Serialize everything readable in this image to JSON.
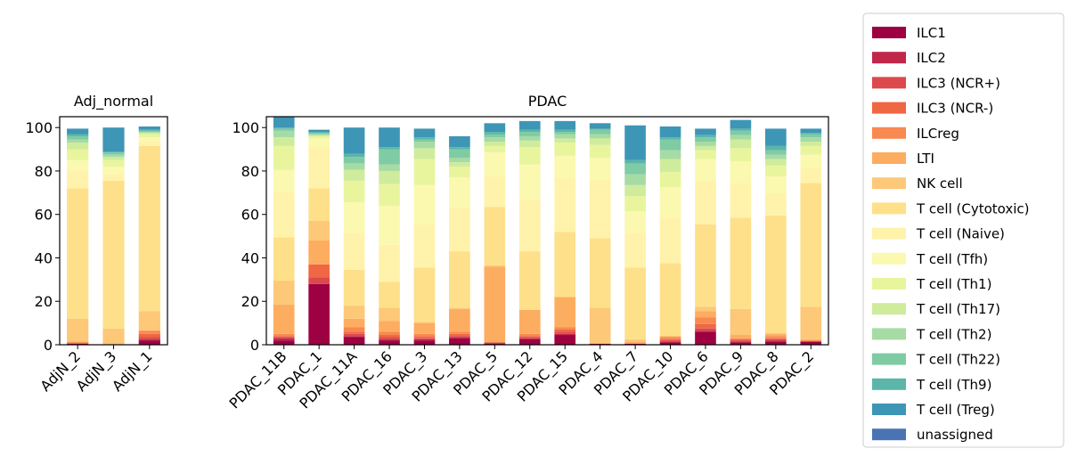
{
  "chart_data": {
    "type": "bar",
    "stacked": true,
    "legend_position": "right",
    "grid": false,
    "categories_legend": [
      {
        "name": "ILC1",
        "color": "#9e0142"
      },
      {
        "name": "ILC2",
        "color": "#c1274a"
      },
      {
        "name": "ILC3 (NCR+)",
        "color": "#dc494c"
      },
      {
        "name": "ILC3 (NCR-)",
        "color": "#f06744"
      },
      {
        "name": "ILCreg",
        "color": "#f88950"
      },
      {
        "name": "LTI",
        "color": "#fdad60"
      },
      {
        "name": "NK cell",
        "color": "#fdc877"
      },
      {
        "name": "T cell (Cytotoxic)",
        "color": "#fee08b"
      },
      {
        "name": "T cell (Naive)",
        "color": "#fff2aa"
      },
      {
        "name": "T cell (Tfh)",
        "color": "#fbf8b0"
      },
      {
        "name": "T cell (Th1)",
        "color": "#e9f59d"
      },
      {
        "name": "T cell (Th17)",
        "color": "#cfec9d"
      },
      {
        "name": "T cell (Th2)",
        "color": "#a7dba4"
      },
      {
        "name": "T cell (Th22)",
        "color": "#7fcba4"
      },
      {
        "name": "T cell (Th9)",
        "color": "#5bb5a8"
      },
      {
        "name": "T cell (Treg)",
        "color": "#3e96b6"
      },
      {
        "name": "unassigned",
        "color": "#4a73b3"
      }
    ],
    "panels": [
      {
        "title": "Adj_normal",
        "ylim": [
          0,
          105
        ],
        "yticks": [
          0,
          20,
          40,
          60,
          80,
          100
        ],
        "categories": [
          "AdjN_2",
          "AdjN_3",
          "AdjN_1"
        ],
        "values": [
          [
            0.5,
            0,
            0,
            0.5,
            0,
            0.5,
            10.5,
            60,
            8,
            5,
            5,
            3,
            1.5,
            1.5,
            1,
            2.5,
            0
          ],
          [
            0,
            0,
            0,
            0,
            0,
            0,
            7.5,
            68,
            3,
            3.5,
            3,
            1.5,
            1,
            1,
            0.5,
            11,
            0
          ],
          [
            2,
            0.5,
            1,
            1.5,
            1.5,
            0,
            9,
            76,
            2,
            2,
            1.5,
            0.5,
            0.5,
            0.5,
            0.5,
            1.5,
            0
          ]
        ]
      },
      {
        "title": "PDAC",
        "ylim": [
          0,
          105
        ],
        "yticks": [
          0,
          20,
          40,
          60,
          80,
          100
        ],
        "categories": [
          "PDAC_11B",
          "PDAC_1",
          "PDAC_11A",
          "PDAC_16",
          "PDAC_3",
          "PDAC_13",
          "PDAC_5",
          "PDAC_12",
          "PDAC_15",
          "PDAC_4",
          "PDAC_7",
          "PDAC_10",
          "PDAC_6",
          "PDAC_9",
          "PDAC_8",
          "PDAC_2"
        ],
        "values": [
          [
            2,
            1,
            0.5,
            0.5,
            1,
            13.5,
            11,
            20,
            21,
            10,
            11,
            4,
            3,
            1,
            0.5,
            5,
            0
          ],
          [
            28,
            0,
            3,
            6,
            0,
            11,
            9,
            15,
            19,
            4,
            1,
            0.5,
            0.5,
            0.5,
            0.5,
            1,
            0
          ],
          [
            3.5,
            0.5,
            1,
            1,
            2,
            4,
            6,
            16.5,
            17,
            14,
            10,
            5,
            3,
            3,
            1.5,
            12,
            0
          ],
          [
            2,
            0.5,
            1,
            1,
            1.5,
            5,
            6,
            12,
            17,
            18,
            10,
            6,
            3,
            7,
            1,
            9,
            0
          ],
          [
            2,
            0.5,
            0.5,
            1,
            1,
            5,
            0.5,
            25,
            20,
            18,
            12,
            5,
            3,
            1,
            1,
            4,
            0
          ],
          [
            3,
            0.5,
            0.5,
            1,
            1,
            10.5,
            0.5,
            26,
            20,
            14,
            5,
            2,
            2,
            4,
            1,
            5,
            0
          ],
          [
            0.5,
            0.5,
            0,
            0,
            0,
            35,
            0.5,
            27,
            14,
            11,
            3,
            2,
            2,
            1.5,
            1,
            4,
            0
          ],
          [
            2.5,
            0.5,
            0.5,
            0.5,
            1,
            11,
            0,
            27,
            24,
            16,
            8,
            3,
            2,
            2,
            1,
            4,
            0
          ],
          [
            4.5,
            0.5,
            1,
            1,
            1,
            14,
            0,
            30,
            25,
            10,
            6,
            2,
            2,
            1,
            1,
            4,
            0
          ],
          [
            0.5,
            0,
            0,
            0,
            0,
            0,
            16.5,
            32,
            27,
            10,
            6,
            3,
            2,
            2,
            0.5,
            2.5,
            0
          ],
          [
            0.5,
            0,
            0,
            0,
            0,
            1,
            1,
            33,
            16,
            10,
            7,
            5,
            5,
            5,
            1.5,
            16,
            0
          ],
          [
            1,
            0.5,
            0.5,
            0.5,
            1,
            0.5,
            0,
            33.5,
            21,
            14,
            7,
            6,
            4,
            5,
            1,
            5,
            0
          ],
          [
            6,
            0.5,
            1,
            2,
            3,
            3,
            2,
            38,
            20,
            10,
            4,
            2,
            2,
            2,
            1,
            3,
            0
          ],
          [
            1,
            0.5,
            0.5,
            0.5,
            0.5,
            1.5,
            12,
            42,
            16,
            10,
            6,
            4,
            2,
            2,
            1,
            4,
            0
          ],
          [
            1.5,
            0.5,
            0.5,
            0.5,
            1,
            1,
            0.5,
            54,
            10,
            8,
            5,
            3,
            2,
            2,
            2,
            8,
            0
          ],
          [
            1.5,
            0,
            0,
            0,
            0.5,
            0.5,
            15,
            57,
            7,
            6,
            4,
            2,
            2,
            1.5,
            0.5,
            2,
            0
          ]
        ]
      }
    ]
  }
}
